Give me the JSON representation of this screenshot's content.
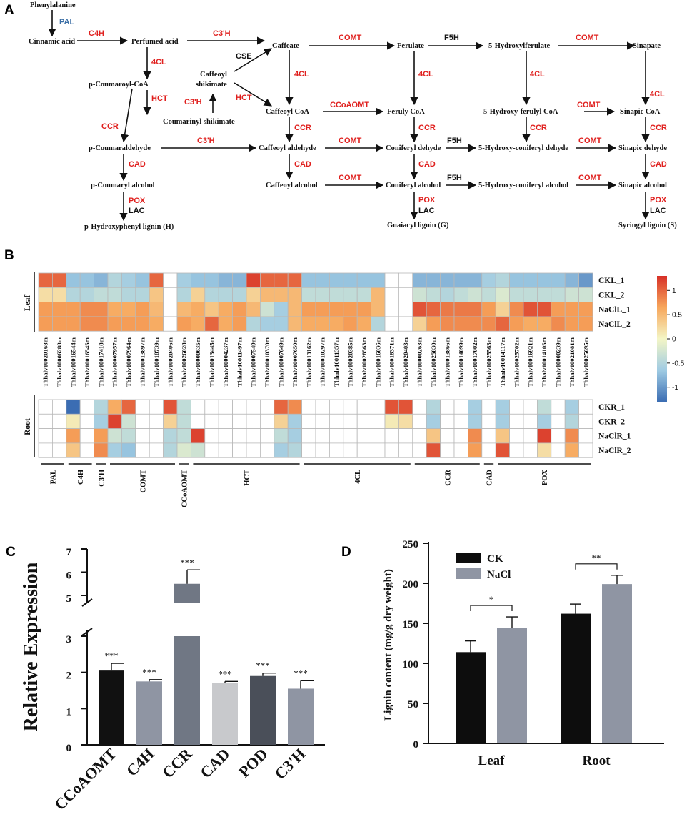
{
  "panels": {
    "a": "A",
    "b": "B",
    "c": "C",
    "d": "D"
  },
  "pathway": {
    "metabolites": [
      "Phenylalanine",
      "Cinnamic acid",
      "Perfumed acid",
      "Caffeate",
      "Ferulate",
      "5-Hydroxylferulate",
      "Sinapate",
      "p-Coumaroyl-CoA",
      "Caffeoyl",
      "shikimate",
      "Coumarinyl shikimate",
      "Caffeoyl CoA",
      "Feruly CoA",
      "5-Hydroxy-ferulyl CoA",
      "Sinapic CoA",
      "p-Coumaraldehyde",
      "Caffeoyl aldehyde",
      "Coniferyl dehyde",
      "5-Hydroxy-coniferyl dehyde",
      "Sinapic dehyde",
      "p-Coumaryl alcohol",
      "Caffeoyl alcohol",
      "Coniferyl alcohol",
      "5-Hydroxy-coniferyl alcohol",
      "Sinapic alcohol",
      "p-Hydroxyphenyl lignin (H)",
      "Guaiacyl lignin (G)",
      "Syringyl lignin (S)"
    ],
    "enzymes": [
      "PAL",
      "C4H",
      "C3'H",
      "COMT",
      "F5H",
      "COMT",
      "4CL",
      "CSE",
      "HCT",
      "C3'H",
      "HCT",
      "4CL",
      "4CL",
      "4CL",
      "4CL",
      "CCoAOMT",
      "COMT",
      "CCR",
      "CCR",
      "CCR",
      "CCR",
      "CCR",
      "C3'H",
      "COMT",
      "F5H",
      "COMT",
      "CAD",
      "CAD",
      "CAD",
      "CAD",
      "COMT",
      "F5H",
      "COMT",
      "POX",
      "LAC",
      "POX",
      "LAC",
      "POX",
      "LAC"
    ]
  },
  "heatmap": {
    "genes": [
      "Thhalv10020168m",
      "Thhalv10006288m",
      "Thhalv10016544m",
      "Thhalv10016545m",
      "Thhalv10017418m",
      "Thhalv10007957m",
      "Thhalv10007964m",
      "Thhalv10013897m",
      "Thhalv10018739m",
      "Thhalv10020406m",
      "Thhalv10026028m",
      "Thhalv10000635m",
      "Thhalv10013445m",
      "Thhalv10004237m",
      "Thhalv10011497m",
      "Thhalv10007549m",
      "Thhalv10010370m",
      "Thhalv10007649m",
      "Thhalv10007650m",
      "Thhalv10013162m",
      "Thhalv10010297m",
      "Thhalv10011357m",
      "Thhalv10020385m",
      "Thhalv10028563m",
      "Thhalv10016036m",
      "Thhalv10018371m",
      "Thhalv10020403m",
      "Thhalv10000263m",
      "Thhalv10025830m",
      "Thhalv10013866m",
      "Thhalv10014099m",
      "Thhalv10017002m",
      "Thhalv10025563m",
      "Thhalv10014117m",
      "Thhalv10025702m",
      "Thhalv10016921m",
      "Thhalv10014105m",
      "Thhalv10000239m",
      "Thhalv10021081m",
      "Thhalv10025695m"
    ],
    "leaf_label": "Leaf",
    "root_label": "Root",
    "leaf_rows": [
      "CKL_1",
      "CKL_2",
      "NaClL_1",
      "NaClL_2"
    ],
    "root_rows": [
      "CKR_1",
      "CKR_2",
      "NaClR_1",
      "NaClR_2"
    ],
    "leaf_values": [
      [
        1.0,
        1.0,
        -0.7,
        -0.7,
        -0.8,
        -0.5,
        -0.6,
        -0.7,
        1.0,
        null,
        -0.6,
        -0.7,
        -0.7,
        -0.8,
        -0.8,
        1.2,
        1.0,
        1.0,
        1.0,
        -0.7,
        -0.7,
        -0.7,
        -0.7,
        -0.7,
        -0.7,
        null,
        null,
        -0.8,
        -0.8,
        -0.8,
        -0.8,
        -0.8,
        -0.6,
        -0.5,
        -0.7,
        -0.7,
        -0.7,
        -0.7,
        -0.8,
        -1.0
      ],
      [
        0.2,
        0.2,
        -0.5,
        -0.5,
        -0.4,
        -0.4,
        -0.5,
        -0.5,
        0.4,
        null,
        -0.5,
        0.3,
        -0.5,
        -0.5,
        -0.5,
        0.3,
        0.5,
        0.5,
        0.5,
        -0.4,
        -0.4,
        -0.4,
        -0.4,
        -0.4,
        0.5,
        null,
        null,
        -0.3,
        -0.4,
        -0.5,
        -0.4,
        -0.3,
        -0.4,
        -0.2,
        -0.4,
        -0.4,
        -0.4,
        -0.4,
        -0.3,
        -0.3
      ],
      [
        0.7,
        0.7,
        0.7,
        0.8,
        0.8,
        0.6,
        0.6,
        0.7,
        0.5,
        null,
        0.5,
        0.6,
        0.4,
        0.6,
        0.7,
        0.5,
        -0.3,
        -0.6,
        0.5,
        0.7,
        0.7,
        0.7,
        0.7,
        0.7,
        0.5,
        null,
        null,
        1.1,
        1.0,
        0.9,
        0.9,
        0.9,
        0.7,
        0.3,
        0.8,
        1.1,
        1.1,
        0.7,
        0.7,
        0.7
      ],
      [
        0.7,
        0.7,
        0.7,
        0.8,
        0.8,
        0.7,
        0.7,
        0.7,
        0.6,
        null,
        0.7,
        0.6,
        1.0,
        0.6,
        0.7,
        -0.5,
        -0.6,
        -0.6,
        0.5,
        0.6,
        0.6,
        0.6,
        0.7,
        0.6,
        -0.5,
        null,
        null,
        0.3,
        0.7,
        0.8,
        0.8,
        0.8,
        0.8,
        1.0,
        0.7,
        0.6,
        0.6,
        0.8,
        0.7,
        0.7
      ]
    ],
    "root_values": [
      [
        null,
        null,
        -1.3,
        null,
        -0.5,
        0.6,
        1.0,
        null,
        null,
        1.1,
        -0.4,
        null,
        null,
        null,
        null,
        null,
        null,
        1.0,
        0.8,
        null,
        null,
        null,
        null,
        null,
        null,
        1.1,
        1.1,
        null,
        -0.5,
        null,
        null,
        -0.6,
        null,
        -0.6,
        null,
        null,
        -0.4,
        null,
        -0.6,
        null
      ],
      [
        null,
        null,
        0.1,
        null,
        -0.6,
        1.2,
        -0.3,
        null,
        null,
        0.3,
        -0.4,
        null,
        null,
        null,
        null,
        null,
        null,
        0.3,
        -0.6,
        null,
        null,
        null,
        null,
        null,
        null,
        0.1,
        0.2,
        null,
        -0.6,
        null,
        null,
        -0.6,
        null,
        -0.6,
        null,
        null,
        -0.6,
        null,
        -0.5,
        null
      ],
      [
        null,
        null,
        0.7,
        null,
        0.7,
        -0.3,
        -0.4,
        null,
        null,
        -0.5,
        -0.4,
        1.2,
        null,
        null,
        null,
        null,
        null,
        -0.4,
        -0.6,
        null,
        null,
        null,
        null,
        null,
        null,
        null,
        null,
        null,
        0.4,
        null,
        null,
        0.8,
        null,
        0.4,
        null,
        null,
        1.2,
        null,
        0.8,
        null
      ],
      [
        null,
        null,
        0.4,
        null,
        0.8,
        -0.6,
        -0.7,
        null,
        null,
        -0.5,
        -0.2,
        -0.3,
        null,
        null,
        null,
        null,
        null,
        -0.6,
        -0.5,
        null,
        null,
        null,
        null,
        null,
        null,
        null,
        null,
        null,
        1.1,
        null,
        null,
        0.7,
        null,
        1.1,
        null,
        null,
        0.2,
        null,
        0.6,
        null
      ]
    ],
    "groups": [
      {
        "name": "PAL",
        "start": 0,
        "end": 1
      },
      {
        "name": "C4H",
        "start": 2,
        "end": 3
      },
      {
        "name": "C3'H",
        "start": 4,
        "end": 4
      },
      {
        "name": "COMT",
        "start": 5,
        "end": 9
      },
      {
        "name": "CCoAOMT",
        "start": 10,
        "end": 10
      },
      {
        "name": "HCT",
        "start": 11,
        "end": 18
      },
      {
        "name": "4CL",
        "start": 19,
        "end": 26
      },
      {
        "name": "CCR",
        "start": 27,
        "end": 31
      },
      {
        "name": "CAD",
        "start": 32,
        "end": 32
      },
      {
        "name": "POX",
        "start": 33,
        "end": 39
      }
    ],
    "colorbar": {
      "ticks": [
        "1",
        "0.5",
        "0",
        "-0.5",
        "-1"
      ],
      "tick_values": [
        1,
        0.5,
        0,
        -0.5,
        -1
      ],
      "range": [
        -1.3,
        1.3
      ]
    }
  },
  "chart_data": [
    {
      "type": "bar",
      "panel": "C",
      "ylabel": "Relative Expression",
      "categories": [
        "CCoAOMT",
        "C4H",
        "CCR",
        "CAD",
        "POD",
        "C3'H"
      ],
      "values": [
        2.05,
        1.75,
        5.5,
        1.7,
        1.9,
        1.55
      ],
      "errors": [
        0.2,
        0.05,
        0.6,
        0.05,
        0.08,
        0.22
      ],
      "significance": [
        "***",
        "***",
        "***",
        "***",
        "***",
        "***"
      ],
      "colors": [
        "#111111",
        "#8f95a3",
        "#707784",
        "#c8c9cc",
        "#4a4f59",
        "#8f95a3"
      ],
      "ylim_lower": [
        0,
        3
      ],
      "ylim_upper": [
        5,
        7
      ],
      "yticks": [
        "0",
        "1",
        "2",
        "3",
        "5",
        "6",
        "7"
      ],
      "ytick_values": [
        0,
        1,
        2,
        3,
        5,
        6,
        7
      ]
    },
    {
      "type": "bar",
      "panel": "D",
      "ylabel": "Lignin content (mg/g dry weight)",
      "categories": [
        "Leaf",
        "Root"
      ],
      "series": [
        {
          "name": "CK",
          "values": [
            114,
            162
          ],
          "errors": [
            14,
            12
          ],
          "color": "#0d0d0d"
        },
        {
          "name": "NaCl",
          "values": [
            144,
            199
          ],
          "errors": [
            14,
            11
          ],
          "color": "#8f95a3"
        }
      ],
      "significance": [
        "*",
        "**"
      ],
      "ylim": [
        0,
        250
      ],
      "yticks": [
        "0",
        "50",
        "100",
        "150",
        "200",
        "250"
      ],
      "ytick_values": [
        0,
        50,
        100,
        150,
        200,
        250
      ],
      "legend": "top-left"
    }
  ]
}
